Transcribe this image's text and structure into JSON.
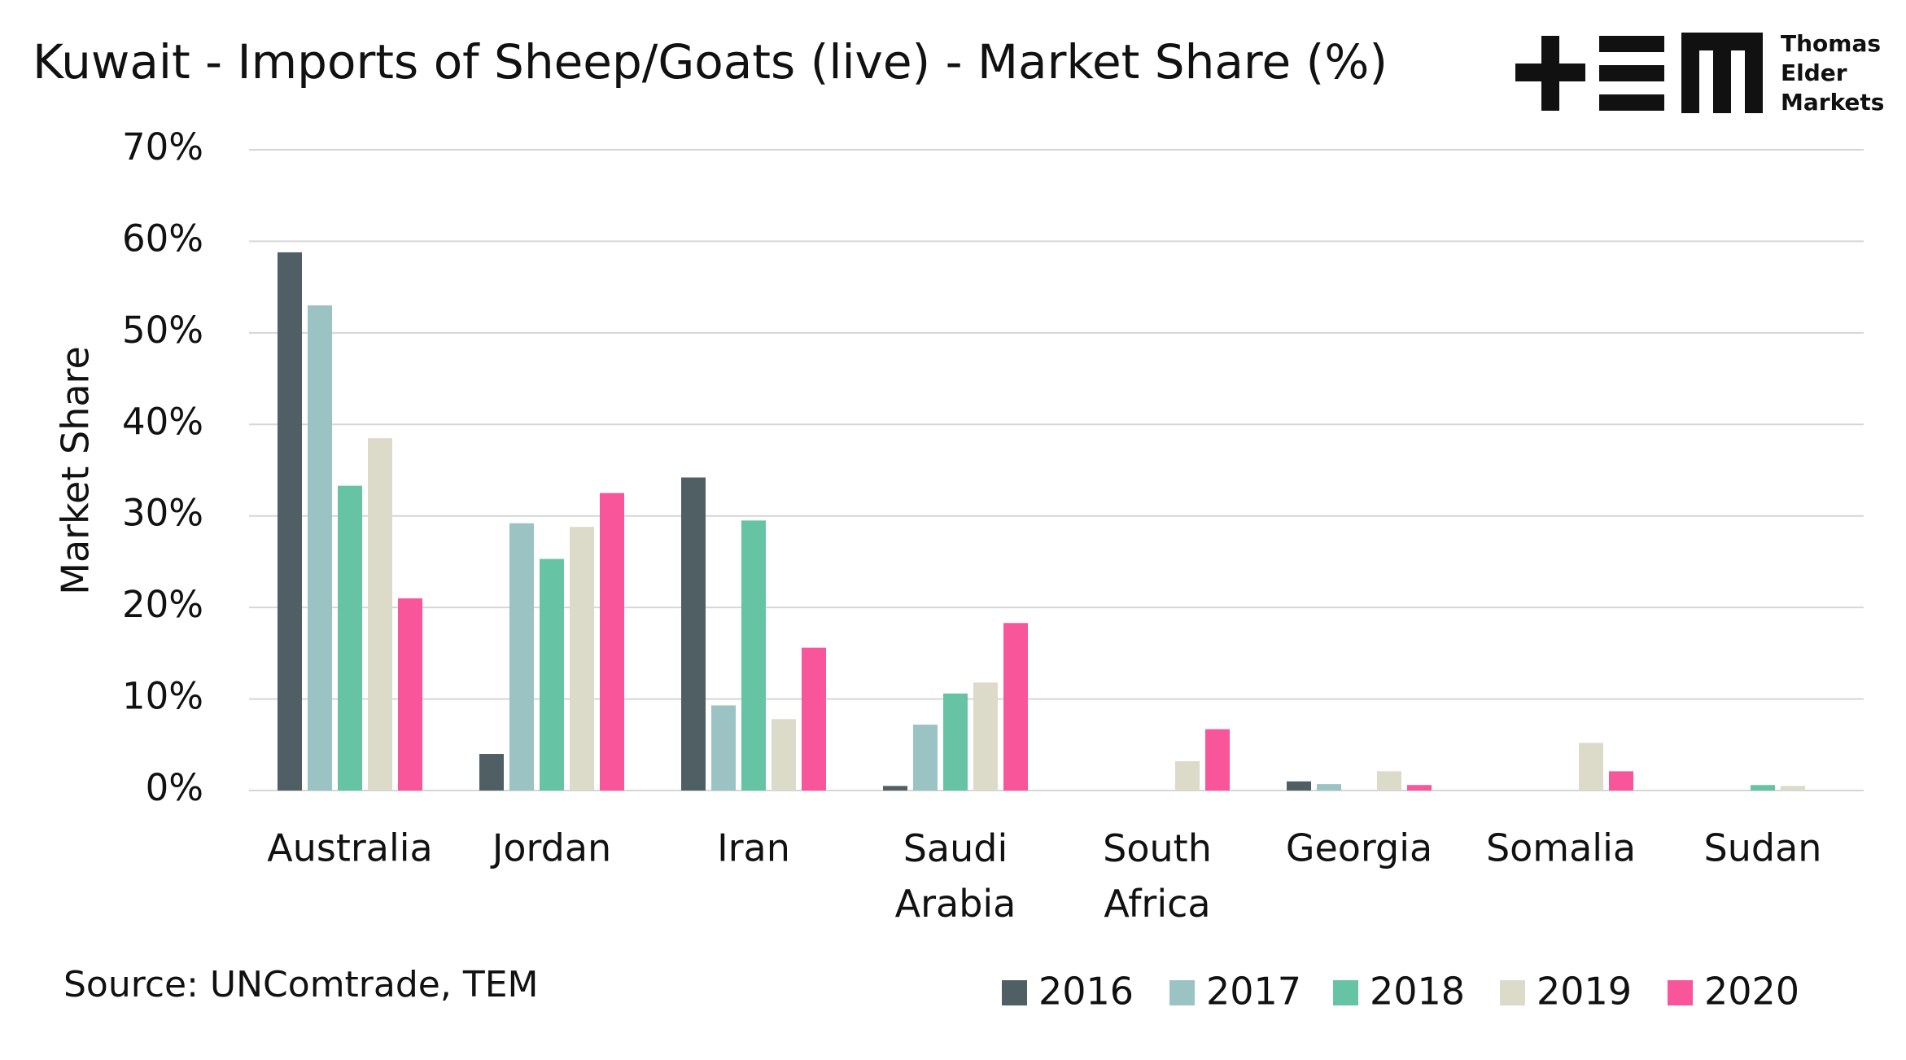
{
  "chart_data": {
    "type": "bar",
    "title": "Kuwait - Imports of Sheep/Goats (live) - Market Share (%)",
    "y_label": "Market Share",
    "source": "Source: UNComtrade, TEM",
    "logo": [
      "Thomas",
      "Elder",
      "Markets"
    ],
    "categories": [
      "Australia",
      "Jordan",
      "Iran",
      "Saudi Arabia",
      "South Africa",
      "Georgia",
      "Somalia",
      "Sudan"
    ],
    "series": [
      {
        "name": "2016",
        "color": "#4f5f63",
        "values": [
          58.8,
          4.0,
          34.2,
          0.5,
          0,
          1.0,
          0,
          0
        ]
      },
      {
        "name": "2017",
        "color": "#9bc3c3",
        "values": [
          53.0,
          29.2,
          9.3,
          7.2,
          0,
          0.7,
          0,
          0
        ]
      },
      {
        "name": "2018",
        "color": "#66c4a5",
        "values": [
          33.3,
          25.3,
          29.5,
          10.6,
          0,
          0,
          0,
          0.6
        ]
      },
      {
        "name": "2019",
        "color": "#dcdac8",
        "values": [
          38.5,
          28.8,
          7.8,
          11.8,
          3.2,
          2.1,
          5.2,
          0.5
        ]
      },
      {
        "name": "2020",
        "color": "#f9559a",
        "values": [
          21.0,
          32.5,
          15.6,
          18.3,
          6.7,
          0.6,
          2.1,
          0
        ]
      }
    ],
    "ylim": [
      0,
      70
    ],
    "yticks": [
      {
        "value": 0,
        "label": "0%"
      },
      {
        "value": 10,
        "label": "10%"
      },
      {
        "value": 20,
        "label": "20%"
      },
      {
        "value": 30,
        "label": "30%"
      },
      {
        "value": 40,
        "label": "40%"
      },
      {
        "value": 50,
        "label": "50%"
      },
      {
        "value": 60,
        "label": "60%"
      },
      {
        "value": 70,
        "label": "70%"
      }
    ],
    "grid": true
  }
}
